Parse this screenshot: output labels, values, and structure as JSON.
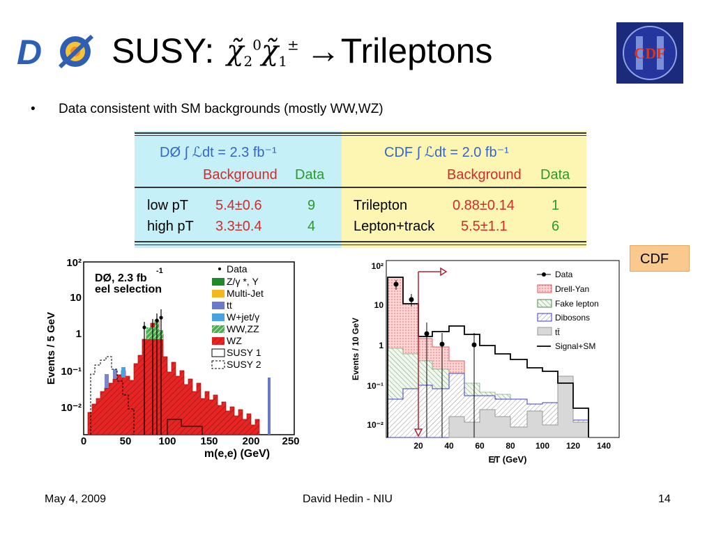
{
  "title": {
    "prefix": "SUSY:",
    "particles": "χ̃",
    "arrow": "→",
    "suffix": "Trileptons"
  },
  "logos": {
    "left": "DØ",
    "right": "CDF"
  },
  "bullet": {
    "symbol": "•",
    "text": "Data consistent with SM backgrounds (mostly WW,WZ)"
  },
  "table": {
    "d0_header": "DØ ∫ ℒdt = 2.3 fb⁻¹",
    "cdf_header": "CDF ∫ ℒdt = 2.0 fb⁻¹",
    "bkg_label": "Background",
    "data_label": "Data",
    "d0_rows": [
      {
        "name": "low pT",
        "bkg": "5.4±0.6",
        "data": "9"
      },
      {
        "name": "high pT",
        "bkg": "3.3±0.4",
        "data": "4"
      }
    ],
    "cdf_rows": [
      {
        "name": "Trilepton",
        "bkg": "0.88±0.14",
        "data": "1"
      },
      {
        "name": "Lepton+track",
        "bkg": "5.5±1.1",
        "data": "6"
      }
    ]
  },
  "cdf_label": "CDF",
  "d0_plot": {
    "label1": "DØ, 2.3 fb",
    "label1_sup": "-1",
    "label2": "eel selection",
    "ylabel": "Events / 5 GeV",
    "xlabel": "m(e,e) (GeV)",
    "xticks": [
      "0",
      "50",
      "100",
      "150",
      "200",
      "250"
    ],
    "yticks": [
      "10²",
      "10",
      "1",
      "10⁻¹",
      "10⁻²"
    ],
    "legend": [
      "Data",
      "Z/γ *, Y",
      "Multi-Jet",
      "tt",
      "W+jet/γ",
      "WW,ZZ",
      "WZ",
      "SUSY 1",
      "SUSY 2"
    ]
  },
  "cdf_plot": {
    "ylabel": "Events / 10 GeV",
    "xlabel": "E̸T (GeV)",
    "xticks": [
      "20",
      "40",
      "60",
      "80",
      "100",
      "120",
      "140"
    ],
    "yticks": [
      "10²",
      "10",
      "1",
      "10⁻¹",
      "10⁻²"
    ],
    "legend": [
      "Data",
      "Drell-Yan",
      "Fake lepton",
      "Dibosons",
      "tt̄",
      "Signal+SM"
    ]
  },
  "footer": {
    "date": "May 4, 2009",
    "author": "David Hedin - NIU",
    "page": "14"
  }
}
